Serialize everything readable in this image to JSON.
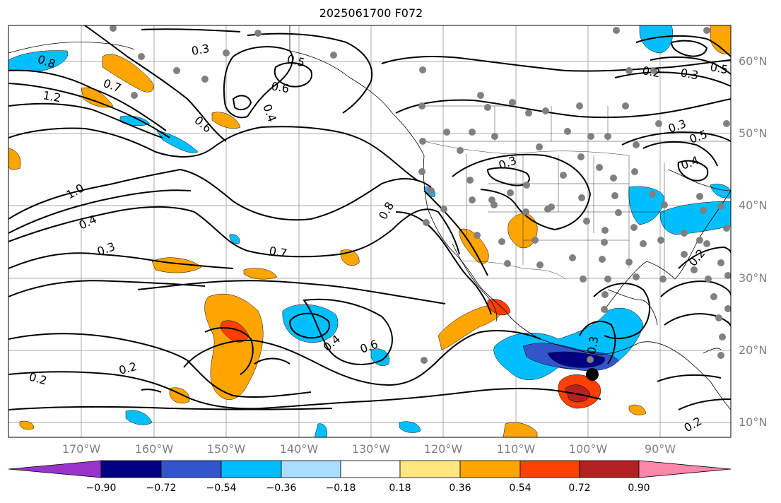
{
  "title": "2025061700 F072",
  "lat_labels": [
    "60°N",
    "50°N",
    "40°N",
    "30°N",
    "20°N",
    "10°N"
  ],
  "lon_labels": [
    "170°W",
    "160°W",
    "150°W",
    "140°W",
    "130°W",
    "120°W",
    "110°W",
    "100°W",
    "90°W"
  ],
  "contour_labels": [
    "0.8",
    "0.7",
    "1.2",
    "1.0",
    "0.4",
    "0.3",
    "0.2",
    "0.2",
    "0.3",
    "0.5",
    "0.6",
    "0.4",
    "0.6",
    "0.7",
    "0.8",
    "0.3",
    "0.4",
    "0.6",
    "0.3",
    "0.2",
    "0.3",
    "0.5",
    "0.3",
    "0.5",
    "0.4",
    "0.2",
    "0.2"
  ],
  "colorbar": {
    "ticks": [
      "−0.90",
      "−0.72",
      "−0.54",
      "−0.36",
      "−0.18",
      "0.18",
      "0.36",
      "0.54",
      "0.72",
      "0.90"
    ],
    "colors": [
      "#9933cc",
      "#000080",
      "#3355cc",
      "#00bfff",
      "#aadeff",
      "#ffffff",
      "#ffe680",
      "#ffa500",
      "#ff4000",
      "#b22222",
      "#ff88aa"
    ]
  }
}
